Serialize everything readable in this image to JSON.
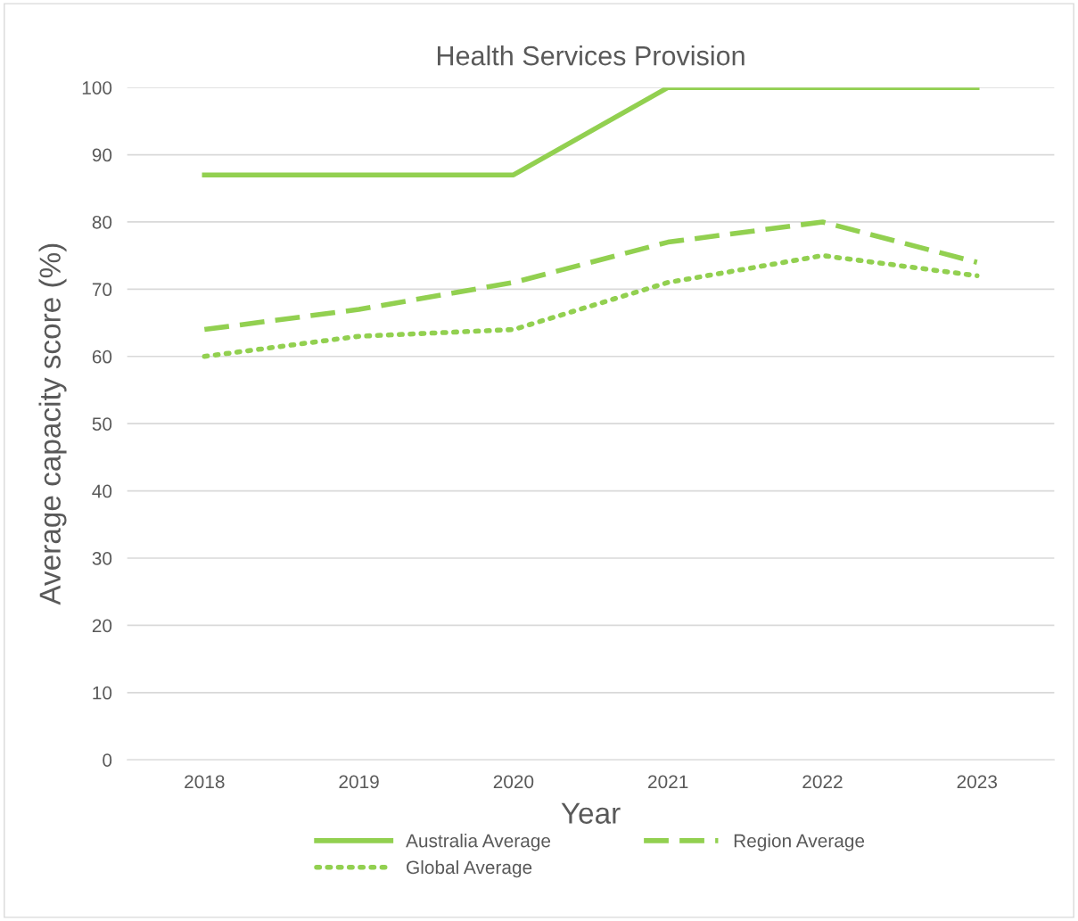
{
  "chart_data": {
    "type": "line",
    "title": "Health Services Provision",
    "xlabel": "Year",
    "ylabel": "Average capacity score (%)",
    "categories": [
      "2018",
      "2019",
      "2020",
      "2021",
      "2022",
      "2023"
    ],
    "series": [
      {
        "name": "Australia Average",
        "color": "#92d050",
        "line_style": "solid",
        "values": [
          87,
          87,
          87,
          100,
          100,
          100
        ]
      },
      {
        "name": "Region Average",
        "color": "#92d050",
        "line_style": "dashed",
        "values": [
          64,
          67,
          71,
          77,
          80,
          74
        ]
      },
      {
        "name": "Global Average",
        "color": "#92d050",
        "line_style": "dotted",
        "values": [
          60,
          63,
          64,
          71,
          75,
          72
        ]
      }
    ],
    "ylim": [
      0,
      100
    ],
    "yticks": [
      0,
      10,
      20,
      30,
      40,
      50,
      60,
      70,
      80,
      90,
      100
    ],
    "grid": "y",
    "legend": "bottom",
    "marker": "none"
  }
}
